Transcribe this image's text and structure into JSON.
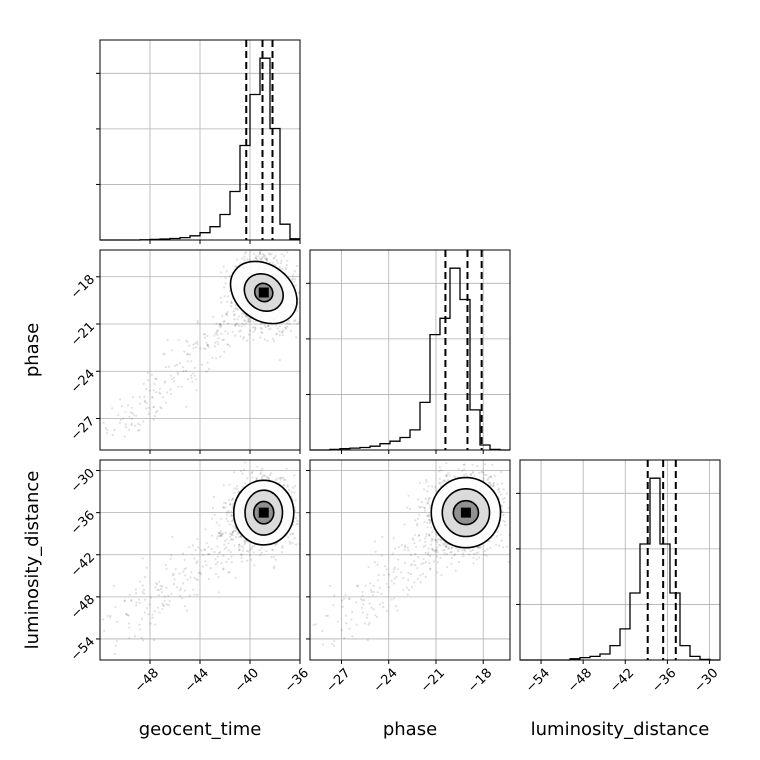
{
  "chart_data": {
    "type": "corner",
    "parameters": [
      "geocent_time",
      "phase",
      "luminosity_distance"
    ],
    "ranges": {
      "geocent_time": [
        -52,
        -36
      ],
      "phase": [
        -29,
        -16.3
      ],
      "luminosity_distance": [
        -57,
        -28.5
      ]
    },
    "ticks": {
      "geocent_time": [
        -48,
        -44,
        -40,
        -36
      ],
      "phase": [
        -27,
        -24,
        -21,
        -18
      ],
      "luminosity_distance": [
        -54,
        -48,
        -42,
        -36,
        -30
      ]
    },
    "tick_labels": {
      "geocent_time": [
        "−48",
        "−44",
        "−40",
        "−36"
      ],
      "phase": [
        "−27",
        "−24",
        "−21",
        "−18"
      ],
      "luminosity_distance": [
        "−54",
        "−48",
        "−42",
        "−36",
        "−30"
      ]
    },
    "axis_labels": {
      "x": [
        "geocent_time",
        "phase",
        "luminosity_distance"
      ],
      "y": [
        "phase",
        "luminosity_distance"
      ]
    },
    "histograms": [
      {
        "parameter": "geocent_time",
        "bin_edges": [
          -52,
          -51.2,
          -50.4,
          -49.6,
          -48.8,
          -48,
          -47.2,
          -46.4,
          -45.6,
          -44.8,
          -44,
          -43.2,
          -42.4,
          -41.6,
          -40.8,
          -40,
          -39.2,
          -38.4,
          -37.6,
          -36.8,
          -36
        ],
        "counts": [
          0,
          0,
          0,
          0,
          0.2,
          0.5,
          0.8,
          1.2,
          2,
          3.5,
          6,
          11,
          21,
          40,
          78,
          120,
          150,
          92,
          13,
          1
        ],
        "quantiles": [
          -40.3,
          -39.0,
          -38.2
        ]
      },
      {
        "parameter": "phase",
        "bin_edges": [
          -29,
          -28.365,
          -27.73,
          -27.095,
          -26.46,
          -25.825,
          -25.19,
          -24.555,
          -23.92,
          -23.285,
          -22.65,
          -22.015,
          -21.38,
          -20.745,
          -20.11,
          -19.475,
          -18.84,
          -18.205,
          -17.57,
          -16.935,
          -16.3
        ],
        "counts": [
          0,
          0,
          0.5,
          1,
          1.5,
          2,
          3,
          5,
          7,
          10,
          16,
          38,
          92,
          105,
          145,
          120,
          32,
          4,
          0.5,
          0
        ],
        "quantiles": [
          -20.4,
          -19.0,
          -18.1
        ]
      },
      {
        "parameter": "luminosity_distance",
        "bin_edges": [
          -57,
          -55.575,
          -54.15,
          -52.725,
          -51.3,
          -49.875,
          -48.45,
          -47.025,
          -45.6,
          -44.175,
          -42.75,
          -41.325,
          -39.9,
          -38.475,
          -37.05,
          -35.625,
          -34.2,
          -32.775,
          -31.35,
          -29.925,
          -28.5
        ],
        "counts": [
          0,
          0,
          0,
          0,
          0,
          1,
          2,
          3,
          5,
          12,
          26,
          56,
          97,
          152,
          97,
          56,
          12,
          3,
          0.5,
          0
        ],
        "quantiles": [
          -38.8,
          -36.6,
          -34.8
        ]
      }
    ],
    "scatter_panels": [
      {
        "x": "geocent_time",
        "y": "phase",
        "center": [
          -38.9,
          -19.0
        ],
        "contour_levels": [
          {
            "label": "outer",
            "rx": 2.2,
            "ry": 2.3,
            "angle_deg": 52
          },
          {
            "label": "middle",
            "rx": 1.4,
            "ry": 1.3,
            "angle_deg": 52
          },
          {
            "label": "inner",
            "rx": 0.7,
            "ry": 0.6,
            "angle_deg": 40
          }
        ]
      },
      {
        "x": "geocent_time",
        "y": "luminosity_distance",
        "center": [
          -38.9,
          -36.0
        ],
        "contour_levels": [
          {
            "label": "outer",
            "rx": 2.4,
            "ry": 4.6,
            "angle_deg": 0
          },
          {
            "label": "middle",
            "rx": 1.5,
            "ry": 3.2,
            "angle_deg": 0
          },
          {
            "label": "inner",
            "rx": 0.8,
            "ry": 1.6,
            "angle_deg": 0
          }
        ]
      },
      {
        "x": "phase",
        "y": "luminosity_distance",
        "center": [
          -19.1,
          -36.0
        ],
        "contour_levels": [
          {
            "label": "outer",
            "rx": 2.2,
            "ry": 5.0,
            "angle_deg": 0
          },
          {
            "label": "middle",
            "rx": 1.5,
            "ry": 3.4,
            "angle_deg": 0
          },
          {
            "label": "inner",
            "rx": 0.8,
            "ry": 1.7,
            "angle_deg": 0
          }
        ]
      }
    ],
    "grid": true,
    "colors": {
      "points": "#000000",
      "contour_fill": "#6e6e6e",
      "grid": "#b0b0b0"
    }
  }
}
